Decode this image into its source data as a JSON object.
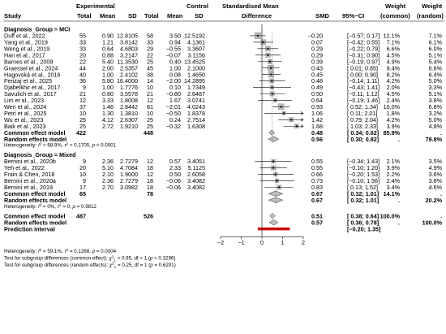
{
  "header": {
    "study": "Study",
    "experimental": "Experimental",
    "control": "Control",
    "total_e": "Total",
    "mean_e": "Mean",
    "sd_e": "SD",
    "total_c": "Total",
    "mean_c": "Mean",
    "sd_c": "SD",
    "smd_line1": "Standardised Mean",
    "smd_line2": "Difference",
    "smd": "SMD",
    "ci": "95%−CI",
    "weight_common_1": "Weight",
    "weight_common_2": "(common)",
    "weight_random_1": "Weight",
    "weight_random_2": "(random)"
  },
  "chart_data": {
    "type": "forest",
    "xlim": [
      -2,
      2
    ],
    "xticks": [
      "−2",
      "−1",
      "0",
      "1",
      "2"
    ],
    "groups": [
      {
        "label": "Diagnosis_Group = MCI",
        "studies": [
          {
            "study": "Duff et al., 2022",
            "ne": "55",
            "me": "0.90",
            "sde": "12.8105",
            "nc": "58",
            "mc": "3.50",
            "sdc": "12.5192",
            "smd": -0.2,
            "lo": -0.57,
            "hi": 0.17,
            "smd_txt": "−0.20",
            "ci_txt": "[−0.57; 0.17]",
            "wc": "12.1%",
            "wr": "7.1%"
          },
          {
            "study": "Yang et al., 2019",
            "ne": "33",
            "me": "1.21",
            "sde": "3.8142",
            "nc": "33",
            "mc": "0.94",
            "sdc": "4.1361",
            "smd": 0.07,
            "lo": -0.42,
            "hi": 0.55,
            "smd_txt": "0.07",
            "ci_txt": "[−0.42; 0.55]",
            "wc": "7.1%",
            "wr": "6.1%"
          },
          {
            "study": "Weng et al., 2019",
            "ne": "33",
            "me": "0.64",
            "sde": "4.6803",
            "nc": "29",
            "mc": "−0.55",
            "sdc": "3.3607",
            "smd": 0.29,
            "lo": -0.22,
            "hi": 0.79,
            "smd_txt": "0.29",
            "ci_txt": "[−0.22; 0.79]",
            "wc": "6.6%",
            "wr": "6.0%"
          },
          {
            "study": "Han et al., 2017",
            "ne": "20",
            "me": "0.88",
            "sde": "3.2147",
            "nc": "22",
            "mc": "−0.07",
            "sdc": "3.1156",
            "smd": 0.29,
            "lo": -0.31,
            "hi": 0.9,
            "smd_txt": "0.29",
            "ci_txt": "[−0.31; 0.90]",
            "wc": "4.5%",
            "wr": "5.1%"
          },
          {
            "study": "Barnes et al., 2009",
            "ne": "22",
            "me": "5.40",
            "sde": "11.3530",
            "nc": "25",
            "mc": "0.40",
            "sdc": "13.4525",
            "smd": 0.39,
            "lo": -0.19,
            "hi": 0.97,
            "smd_txt": "0.39",
            "ci_txt": "[−0.19; 0.97]",
            "wc": "4.9%",
            "wr": "5.4%"
          },
          {
            "study": "Graessel et al., 2024",
            "ne": "44",
            "me": "2.00",
            "sde": "2.5357",
            "nc": "45",
            "mc": "1.00",
            "sdc": "2.1000",
            "smd": 0.43,
            "lo": 0.01,
            "hi": 0.85,
            "smd_txt": "0.43",
            "ci_txt": "[ 0.01; 0.85]",
            "wc": "9.4%",
            "wr": "6.6%"
          },
          {
            "study": "Hagovská et al., 2016",
            "ne": "40",
            "me": "1.00",
            "sde": "2.4102",
            "nc": "38",
            "mc": "0.08",
            "sdc": "1.4650",
            "smd": 0.45,
            "lo": 0.0,
            "hi": 0.9,
            "smd_txt": "0.45",
            "ci_txt": "[ 0.00; 0.90]",
            "wc": "8.2%",
            "wr": "6.4%"
          },
          {
            "study": "Ferizaj et al., 2025",
            "ne": "36",
            "me": "5.80",
            "sde": "16.4000",
            "nc": "14",
            "mc": "−2.00",
            "sdc": "14.2895",
            "smd": 0.48,
            "lo": -0.14,
            "hi": 1.11,
            "smd_txt": "0.48",
            "ci_txt": "[−0.14; 1.11]",
            "wc": "4.2%",
            "wr": "5.0%"
          },
          {
            "study": "Djabelkhir et al., 2017",
            "ne": "9",
            "me": "1.00",
            "sde": "1.7776",
            "nc": "10",
            "mc": "0.10",
            "sdc": "1.7349",
            "smd": 0.49,
            "lo": -0.43,
            "hi": 1.41,
            "smd_txt": "0.49",
            "ci_txt": "[−0.43; 1.41]",
            "wc": "2.0%",
            "wr": "3.3%"
          },
          {
            "study": "Savulich et al., 2017",
            "ne": "21",
            "me": "0.80",
            "sde": "3.5578",
            "nc": "21",
            "mc": "−0.80",
            "sdc": "2.6487",
            "smd": 0.5,
            "lo": -0.11,
            "hi": 1.12,
            "smd_txt": "0.50",
            "ci_txt": "[−0.11; 1.12]",
            "wc": "4.5%",
            "wr": "5.1%"
          },
          {
            "study": "Lim et al., 2023",
            "ne": "12",
            "me": "3.33",
            "sde": "1.8008",
            "nc": "12",
            "mc": "1.67",
            "sdc": "3.0741",
            "smd": 0.64,
            "lo": -0.19,
            "hi": 1.46,
            "smd_txt": "0.64",
            "ci_txt": "[−0.19; 1.46]",
            "wc": "2.4%",
            "wr": "3.8%"
          },
          {
            "study": "Wen et al., 2024",
            "ne": "37",
            "me": "1.46",
            "sde": "2.8442",
            "nc": "81",
            "mc": "−2.01",
            "sdc": "4.0243",
            "smd": 0.93,
            "lo": 0.52,
            "hi": 1.34,
            "smd_txt": "0.93",
            "ci_txt": "[ 0.52; 1.34]",
            "wc": "10.0%",
            "wr": "6.8%"
          },
          {
            "study": "Petri et al., 2025",
            "ne": "10",
            "me": "1.30",
            "sde": "1.3810",
            "nc": "10",
            "mc": "−0.50",
            "sdc": "1.8378",
            "smd": 1.06,
            "lo": 0.11,
            "hi": 2.01,
            "smd_txt": "1.06",
            "ci_txt": "[ 0.11; 2.01]",
            "wc": "1.8%",
            "wr": "3.2%"
          },
          {
            "study": "Wu et al., 2023",
            "ne": "25",
            "me": "4.12",
            "sde": "2.6307",
            "nc": "25",
            "mc": "0.24",
            "sdc": "2.7514",
            "smd": 1.42,
            "lo": 0.79,
            "hi": 2.04,
            "smd_txt": "1.42",
            "ci_txt": "[ 0.79; 2.04]",
            "wc": "4.2%",
            "wr": "5.0%"
          },
          {
            "study": "Baik et al., 2023",
            "ne": "25",
            "me": "2.72",
            "sde": "1.9210",
            "nc": "25",
            "mc": "−0.32",
            "sdc": "1.6308",
            "smd": 1.68,
            "lo": 1.03,
            "hi": 2.33,
            "smd_txt": "1.68",
            "ci_txt": "[ 1.03; 2.33]",
            "wc": "3.9%",
            "wr": "4.8%"
          }
        ],
        "common": {
          "label": "Common effect model",
          "ne": "422",
          "nc": "448",
          "smd": 0.48,
          "lo": 0.34,
          "hi": 0.62,
          "smd_txt": "0.48",
          "ci_txt": "[ 0.34; 0.62]",
          "wc": "85.9%",
          "wr": "."
        },
        "random": {
          "label": "Random effects model",
          "smd": 0.56,
          "lo": 0.3,
          "hi": 0.82,
          "smd_txt": "0.56",
          "ci_txt": "[ 0.30; 0.82]",
          "wc": ".",
          "wr": "79.8%"
        },
        "het_parts": [
          "Heterogeneity: ",
          "I",
          "2",
          " = 68.9%, ",
          "τ",
          "2",
          " = 0.1705, ",
          "p",
          " < 0.0001"
        ]
      },
      {
        "label": "Diagnosis_Group = Mixed",
        "studies": [
          {
            "study": "Bernini et al., 2020b",
            "ne": "9",
            "me": "2.36",
            "sde": "2.7279",
            "nc": "12",
            "mc": "0.57",
            "sdc": "3.4051",
            "smd": 0.55,
            "lo": -0.34,
            "hi": 1.43,
            "smd_txt": "0.55",
            "ci_txt": "[−0.34; 1.43]",
            "wc": "2.1%",
            "wr": "3.5%"
          },
          {
            "study": "Yeh et al., 2022",
            "ne": "20",
            "me": "5.10",
            "sde": "4.7084",
            "nc": "18",
            "mc": "2.33",
            "sdc": "5.1125",
            "smd": 0.55,
            "lo": -0.1,
            "hi": 1.2,
            "smd_txt": "0.55",
            "ci_txt": "[−0.10; 1.20]",
            "wc": "3.9%",
            "wr": "4.9%"
          },
          {
            "study": "Frain & Chen, 2018",
            "ne": "10",
            "me": "2.10",
            "sde": "1.9000",
            "nc": "12",
            "mc": "0.50",
            "sdc": "2.6058",
            "smd": 0.66,
            "lo": -0.2,
            "hi": 1.53,
            "smd_txt": "0.66",
            "ci_txt": "[−0.20; 1.53]",
            "wc": "2.2%",
            "wr": "3.6%"
          },
          {
            "study": "Bernini et al., 2020a",
            "ne": "9",
            "me": "2.36",
            "sde": "2.7279",
            "nc": "18",
            "mc": "−0.06",
            "sdc": "3.4082",
            "smd": 0.73,
            "lo": -0.1,
            "hi": 1.56,
            "smd_txt": "0.73",
            "ci_txt": "[−0.10; 1.56]",
            "wc": "2.4%",
            "wr": "3.8%"
          },
          {
            "study": "Bernini et al., 2019",
            "ne": "17",
            "me": "2.70",
            "sde": "3.0982",
            "nc": "18",
            "mc": "−0.06",
            "sdc": "3.4082",
            "smd": 0.83,
            "lo": 0.13,
            "hi": 1.52,
            "smd_txt": "0.83",
            "ci_txt": "[ 0.13; 1.52]",
            "wc": "3.4%",
            "wr": "4.6%"
          }
        ],
        "common": {
          "label": "Common effect model",
          "ne": "65",
          "nc": "78",
          "smd": 0.67,
          "lo": 0.32,
          "hi": 1.01,
          "smd_txt": "0.67",
          "ci_txt": "[ 0.32; 1.01]",
          "wc": "14.1%",
          "wr": "."
        },
        "random": {
          "label": "Random effects model",
          "smd": 0.67,
          "lo": 0.32,
          "hi": 1.01,
          "smd_txt": "0.67",
          "ci_txt": "[ 0.32; 1.01]",
          "wc": ".",
          "wr": "20.2%"
        },
        "het_parts": [
          "Heterogeneity: ",
          "I",
          "2",
          " = 0%, ",
          "τ",
          "2",
          " = 0, ",
          "p",
          " = 0.9812"
        ]
      }
    ],
    "overall": {
      "common": {
        "label": "Common effect model",
        "ne": "487",
        "nc": "526",
        "smd": 0.51,
        "lo": 0.38,
        "hi": 0.64,
        "smd_txt": "0.51",
        "ci_txt": "[ 0.38; 0.64]",
        "wc": "100.0%",
        "wr": "."
      },
      "random": {
        "label": "Random effects model",
        "smd": 0.57,
        "lo": 0.36,
        "hi": 0.78,
        "smd_txt": "0.57",
        "ci_txt": "[ 0.36; 0.78]",
        "wc": ".",
        "wr": "100.0%"
      },
      "prediction": {
        "label": "Prediction interval",
        "lo": -0.2,
        "hi": 1.35,
        "ci_txt": "[−0.20; 1.35]",
        "color": "#cc0000"
      },
      "het_parts": [
        "Heterogeneity: ",
        "I",
        "2",
        " = 59.1%, ",
        "τ",
        "2",
        " = 0.1268, ",
        "p",
        " = 0.0004"
      ],
      "test_common_parts": [
        "Test for subgroup differences (common effect): ",
        "χ",
        "2",
        "1",
        " = 0.95, df = 1 (",
        "p",
        " = 0.3296)"
      ],
      "test_random_parts": [
        "Test for subgroup differences (random effects): ",
        "χ",
        "2",
        "1",
        " = 0.25, df = 1 (",
        "p",
        " = 0.6201)"
      ]
    },
    "colors": {
      "study_box": "#808080",
      "diamond": "#c0c0c0",
      "ref_line": "#000000",
      "common_dash": "#555555",
      "prediction": "#cc0000"
    }
  }
}
